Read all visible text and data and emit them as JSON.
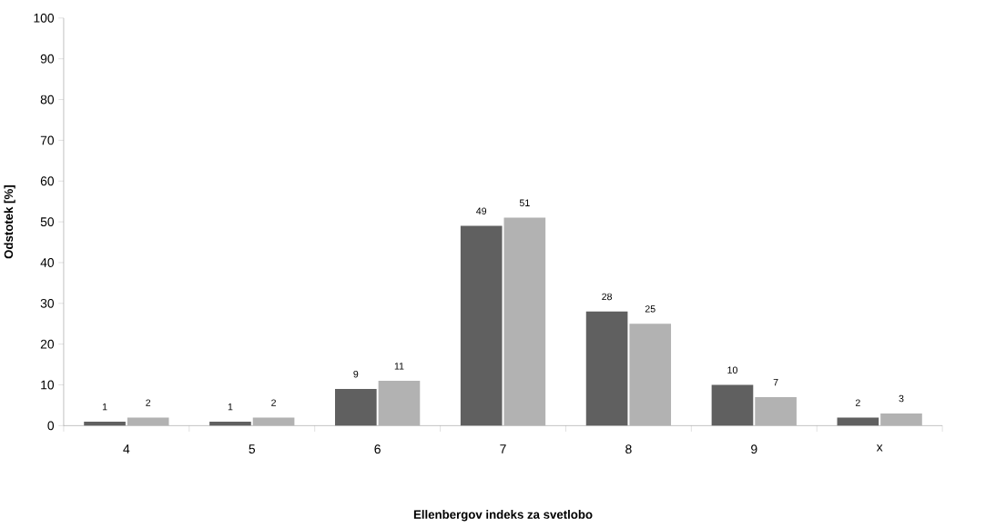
{
  "chart_data": {
    "type": "bar",
    "xlabel": "Ellenbergov indeks za svetlobo",
    "ylabel": "Odstotek [%]",
    "categories": [
      "4",
      "5",
      "6",
      "7",
      "8",
      "9",
      "x"
    ],
    "series": [
      {
        "color": "#606060",
        "values": [
          1,
          1,
          9,
          49,
          28,
          10,
          2
        ]
      },
      {
        "color": "#b2b2b2",
        "values": [
          2,
          2,
          11,
          51,
          25,
          7,
          3
        ]
      }
    ],
    "ylim": [
      0,
      100
    ],
    "yticks": [
      0,
      10,
      20,
      30,
      40,
      50,
      60,
      70,
      80,
      90,
      100
    ],
    "grid": false,
    "data_labels": true
  }
}
